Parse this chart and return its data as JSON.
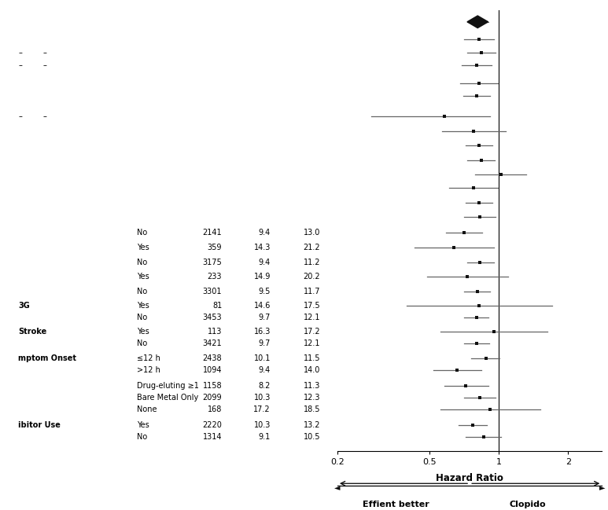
{
  "rows": [
    {
      "label": "",
      "sublabel": "",
      "n": "",
      "pct_eff": "",
      "pct_clop": "",
      "hr": 0.81,
      "ci_lo": 0.73,
      "ci_hi": 0.9,
      "is_overall": true,
      "y": 30
    },
    {
      "label": "",
      "sublabel": "",
      "n": "",
      "pct_eff": "",
      "pct_clop": "",
      "hr": 0.82,
      "ci_lo": 0.71,
      "ci_hi": 0.95,
      "is_overall": false,
      "y": 28.8
    },
    {
      "label": "-",
      "sublabel": "",
      "n": "",
      "pct_eff": "",
      "pct_clop": "",
      "hr": 0.84,
      "ci_lo": 0.73,
      "ci_hi": 0.97,
      "is_overall": false,
      "y": 27.9
    },
    {
      "label": "-",
      "sublabel": "",
      "n": "",
      "pct_eff": "",
      "pct_clop": "",
      "hr": 0.8,
      "ci_lo": 0.69,
      "ci_hi": 0.93,
      "is_overall": false,
      "y": 27.0
    },
    {
      "label": "",
      "sublabel": "",
      "n": "",
      "pct_eff": "",
      "pct_clop": "",
      "hr": 0.82,
      "ci_lo": 0.68,
      "ci_hi": 0.99,
      "is_overall": false,
      "y": 25.8
    },
    {
      "label": "",
      "sublabel": "",
      "n": "",
      "pct_eff": "",
      "pct_clop": "",
      "hr": 0.8,
      "ci_lo": 0.7,
      "ci_hi": 0.92,
      "is_overall": false,
      "y": 24.9
    },
    {
      "label": "-",
      "sublabel": "",
      "n": "",
      "pct_eff": "",
      "pct_clop": "",
      "hr": 0.58,
      "ci_lo": 0.28,
      "ci_hi": 0.92,
      "is_overall": false,
      "y": 23.5
    },
    {
      "label": "",
      "sublabel": "",
      "n": "",
      "pct_eff": "",
      "pct_clop": "",
      "hr": 0.78,
      "ci_lo": 0.57,
      "ci_hi": 1.07,
      "is_overall": false,
      "y": 22.5
    },
    {
      "label": "",
      "sublabel": "",
      "n": "",
      "pct_eff": "",
      "pct_clop": "",
      "hr": 0.82,
      "ci_lo": 0.72,
      "ci_hi": 0.94,
      "is_overall": false,
      "y": 21.5
    },
    {
      "label": "",
      "sublabel": "",
      "n": "",
      "pct_eff": "",
      "pct_clop": "",
      "hr": 0.84,
      "ci_lo": 0.73,
      "ci_hi": 0.96,
      "is_overall": false,
      "y": 20.5
    },
    {
      "label": "",
      "sublabel": "",
      "n": "",
      "pct_eff": "",
      "pct_clop": "",
      "hr": 1.02,
      "ci_lo": 0.79,
      "ci_hi": 1.32,
      "is_overall": false,
      "y": 19.5
    },
    {
      "label": "",
      "sublabel": "",
      "n": "",
      "pct_eff": "",
      "pct_clop": "",
      "hr": 0.78,
      "ci_lo": 0.61,
      "ci_hi": 0.99,
      "is_overall": false,
      "y": 18.6
    },
    {
      "label": "",
      "sublabel": "",
      "n": "",
      "pct_eff": "",
      "pct_clop": "",
      "hr": 0.82,
      "ci_lo": 0.72,
      "ci_hi": 0.94,
      "is_overall": false,
      "y": 17.6
    },
    {
      "label": "",
      "sublabel": "",
      "n": "",
      "pct_eff": "",
      "pct_clop": "",
      "hr": 0.83,
      "ci_lo": 0.71,
      "ci_hi": 0.97,
      "is_overall": false,
      "y": 16.6
    },
    {
      "label": "",
      "sublabel": "No",
      "n": "2141",
      "pct_eff": "9.4",
      "pct_clop": "13.0",
      "hr": 0.71,
      "ci_lo": 0.59,
      "ci_hi": 0.85,
      "is_overall": false,
      "y": 15.5
    },
    {
      "label": "",
      "sublabel": "Yes",
      "n": "359",
      "pct_eff": "14.3",
      "pct_clop": "21.2",
      "hr": 0.64,
      "ci_lo": 0.43,
      "ci_hi": 0.95,
      "is_overall": false,
      "y": 14.5
    },
    {
      "label": "",
      "sublabel": "No",
      "n": "3175",
      "pct_eff": "9.4",
      "pct_clop": "11.2",
      "hr": 0.83,
      "ci_lo": 0.73,
      "ci_hi": 0.95,
      "is_overall": false,
      "y": 13.5
    },
    {
      "label": "",
      "sublabel": "Yes",
      "n": "233",
      "pct_eff": "14.9",
      "pct_clop": "20.2",
      "hr": 0.73,
      "ci_lo": 0.49,
      "ci_hi": 1.1,
      "is_overall": false,
      "y": 12.5
    },
    {
      "label": "",
      "sublabel": "No",
      "n": "3301",
      "pct_eff": "9.5",
      "pct_clop": "11.7",
      "hr": 0.81,
      "ci_lo": 0.71,
      "ci_hi": 0.92,
      "is_overall": false,
      "y": 11.5
    },
    {
      "label": "3G",
      "sublabel": "Yes",
      "n": "81",
      "pct_eff": "14.6",
      "pct_clop": "17.5",
      "hr": 0.82,
      "ci_lo": 0.4,
      "ci_hi": 1.7,
      "is_overall": false,
      "y": 10.5
    },
    {
      "label": "",
      "sublabel": "No",
      "n": "3453",
      "pct_eff": "9.7",
      "pct_clop": "12.1",
      "hr": 0.8,
      "ci_lo": 0.71,
      "ci_hi": 0.9,
      "is_overall": false,
      "y": 9.7
    },
    {
      "label": "Stroke",
      "sublabel": "Yes",
      "n": "113",
      "pct_eff": "16.3",
      "pct_clop": "17.2",
      "hr": 0.95,
      "ci_lo": 0.56,
      "ci_hi": 1.62,
      "is_overall": false,
      "y": 8.7
    },
    {
      "label": "",
      "sublabel": "No",
      "n": "3421",
      "pct_eff": "9.7",
      "pct_clop": "12.1",
      "hr": 0.8,
      "ci_lo": 0.71,
      "ci_hi": 0.91,
      "is_overall": false,
      "y": 7.9
    },
    {
      "label": "mptom Onset",
      "sublabel": "≤12 h",
      "n": "2438",
      "pct_eff": "10.1",
      "pct_clop": "11.5",
      "hr": 0.88,
      "ci_lo": 0.76,
      "ci_hi": 1.01,
      "is_overall": false,
      "y": 6.9
    },
    {
      "label": "",
      "sublabel": ">12 h",
      "n": "1094",
      "pct_eff": "9.4",
      "pct_clop": "14.0",
      "hr": 0.66,
      "ci_lo": 0.52,
      "ci_hi": 0.84,
      "is_overall": false,
      "y": 6.1
    },
    {
      "label": "",
      "sublabel": "Drug-eluting ≥1",
      "n": "1158",
      "pct_eff": "8.2",
      "pct_clop": "11.3",
      "hr": 0.72,
      "ci_lo": 0.58,
      "ci_hi": 0.9,
      "is_overall": false,
      "y": 5.0
    },
    {
      "label": "",
      "sublabel": "Bare Metal Only",
      "n": "2099",
      "pct_eff": "10.3",
      "pct_clop": "12.3",
      "hr": 0.83,
      "ci_lo": 0.71,
      "ci_hi": 0.97,
      "is_overall": false,
      "y": 4.2
    },
    {
      "label": "",
      "sublabel": "None",
      "n": "168",
      "pct_eff": "17.2",
      "pct_clop": "18.5",
      "hr": 0.92,
      "ci_lo": 0.56,
      "ci_hi": 1.52,
      "is_overall": false,
      "y": 3.4
    },
    {
      "label": "ibitor Use",
      "sublabel": "Yes",
      "n": "2220",
      "pct_eff": "10.3",
      "pct_clop": "13.2",
      "hr": 0.77,
      "ci_lo": 0.67,
      "ci_hi": 0.89,
      "is_overall": false,
      "y": 2.3
    },
    {
      "label": "",
      "sublabel": "No",
      "n": "1314",
      "pct_eff": "9.1",
      "pct_clop": "10.5",
      "hr": 0.86,
      "ci_lo": 0.72,
      "ci_hi": 1.02,
      "is_overall": false,
      "y": 1.5
    }
  ],
  "xlim_lo": 0.2,
  "xlim_hi": 2.8,
  "xticks": [
    0.2,
    0.5,
    1.0,
    2.0
  ],
  "xticklabels": [
    "0.2",
    "0.5",
    "1",
    "2"
  ],
  "xlabel": "Hazard Ratio",
  "xlabel_left": "Effient better",
  "xlabel_right": "Clopido",
  "vline_x": 1.0,
  "overall_color": "#111111",
  "point_color": "#111111",
  "ci_color": "#666666",
  "bg_color": "#ffffff",
  "left_labels": [
    {
      "y": 27.9,
      "text": "–",
      "bold": false
    },
    {
      "y": 27.0,
      "text": "–",
      "bold": false
    },
    {
      "y": 23.5,
      "text": "–",
      "bold": false
    },
    {
      "y": 10.5,
      "text": "3G",
      "bold": true
    },
    {
      "y": 8.7,
      "text": "Stroke",
      "bold": true
    },
    {
      "y": 6.9,
      "text": "mptom Onset",
      "bold": true
    },
    {
      "y": 2.3,
      "text": "ibitor Use",
      "bold": true
    }
  ]
}
